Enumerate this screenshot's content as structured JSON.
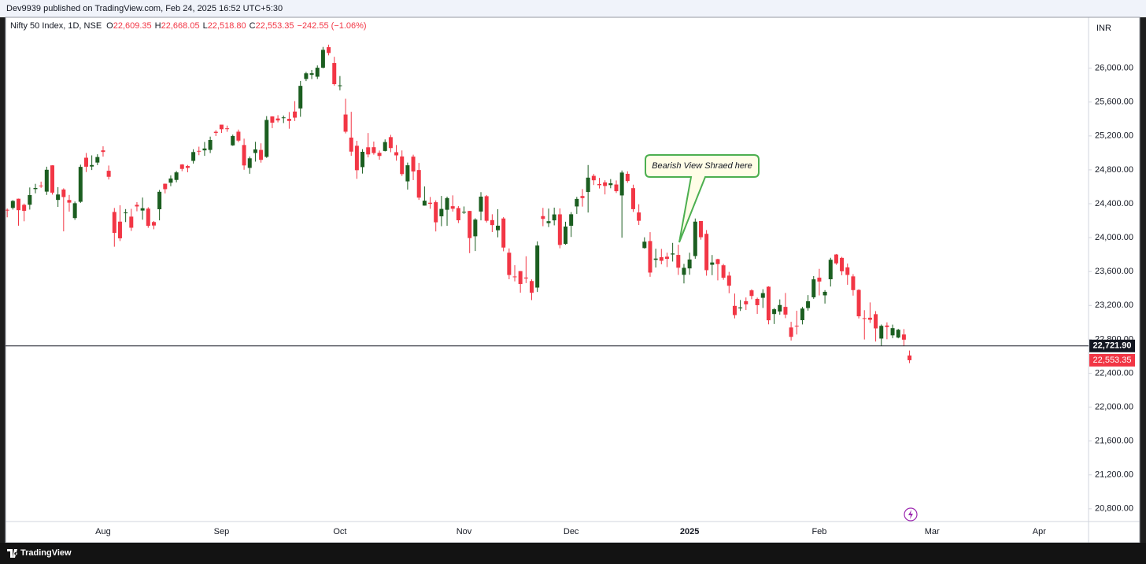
{
  "header": "Dev9939 published on TradingView.com, Feb 24, 2025 16:52 UTC+5:30",
  "footer": "TradingView",
  "chart_data": {
    "type": "candlestick",
    "legend": {
      "symbol": "Nifty 50 Index, 1D, NSE",
      "items": [
        {
          "key": "O",
          "value": "22,609.35"
        },
        {
          "key": "H",
          "value": "22,668.05"
        },
        {
          "key": "L",
          "value": "22,518.80"
        },
        {
          "key": "C",
          "value": "22,553.35"
        }
      ],
      "change": "−242.55 (−1.06%)"
    },
    "currency": "INR",
    "annotation": "Bearish View Shraed here",
    "up_color": "#1b5e20",
    "down_color": "#f23645",
    "ylim": [
      20650,
      26600
    ],
    "yticks": [
      {
        "value": 26000,
        "label": "26,000.00"
      },
      {
        "value": 25600,
        "label": "25,600.00"
      },
      {
        "value": 25200,
        "label": "25,200.00"
      },
      {
        "value": 24800,
        "label": "24,800.00"
      },
      {
        "value": 24400,
        "label": "24,400.00"
      },
      {
        "value": 24000,
        "label": "24,000.00"
      },
      {
        "value": 23600,
        "label": "23,600.00"
      },
      {
        "value": 23200,
        "label": "23,200.00"
      },
      {
        "value": 22800,
        "label": "22,800.00"
      },
      {
        "value": 22400,
        "label": "22,400.00"
      },
      {
        "value": 22000,
        "label": "22,000.00"
      },
      {
        "value": 21600,
        "label": "21,600.00"
      },
      {
        "value": 21200,
        "label": "21,200.00"
      },
      {
        "value": 20800,
        "label": "20,800.00"
      }
    ],
    "hline": {
      "value": 22721.9,
      "label": "22,721.90"
    },
    "last_price": {
      "value": 22553.35,
      "label": "22,553.35"
    },
    "categories": [
      null,
      null,
      null,
      null,
      null,
      null,
      null,
      null,
      null,
      null,
      null,
      null,
      null,
      null,
      null,
      null,
      null,
      null,
      "Aug",
      null,
      null,
      null,
      null,
      null,
      null,
      null,
      null,
      null,
      null,
      null,
      null,
      null,
      null,
      null,
      null,
      null,
      null,
      null,
      null,
      "Sep",
      null,
      null,
      null,
      null,
      null,
      null,
      null,
      null,
      null,
      null,
      null,
      null,
      null,
      null,
      null,
      null,
      null,
      null,
      null,
      null,
      "Oct",
      null,
      null,
      null,
      null,
      null,
      null,
      null,
      null,
      null,
      null,
      null,
      null,
      null,
      null,
      null,
      null,
      null,
      null,
      null,
      null,
      null,
      "Nov",
      null,
      null,
      null,
      null,
      null,
      null,
      null,
      null,
      null,
      null,
      null,
      null,
      null,
      null,
      null,
      null,
      null,
      null,
      "Dec",
      null,
      null,
      null,
      null,
      null,
      null,
      null,
      null,
      null,
      null,
      null,
      null,
      null,
      null,
      null,
      null,
      null,
      null,
      null,
      null,
      "2025",
      null,
      null,
      null,
      null,
      null,
      null,
      null,
      null,
      null,
      null,
      null,
      null,
      null,
      null,
      null,
      null,
      null,
      null,
      null,
      null,
      null,
      null,
      "Feb",
      null,
      null,
      null,
      null,
      null,
      null,
      null,
      null,
      null,
      null,
      null,
      null,
      null,
      null,
      null,
      null,
      null,
      null,
      null,
      "Mar",
      null,
      null,
      null,
      null,
      null,
      null,
      null,
      null,
      null,
      null,
      null,
      null,
      null,
      null,
      null,
      null,
      null,
      null,
      "Apr",
      null,
      null,
      null,
      null,
      null,
      null,
      null,
      null
    ],
    "ohlc": [
      [
        24302,
        24363,
        24168,
        24323
      ],
      [
        24329,
        24344,
        24240,
        24320
      ],
      [
        24351,
        24443,
        24331,
        24433
      ],
      [
        24459,
        24461,
        24141,
        24324
      ],
      [
        24387,
        24402,
        24193,
        24316
      ],
      [
        24388,
        24592,
        24331,
        24502
      ],
      [
        24573,
        24635,
        24523,
        24586
      ],
      [
        24615,
        24661,
        24587,
        24613
      ],
      [
        24543,
        24837,
        24504,
        24801
      ],
      [
        24853,
        24854,
        24508,
        24531
      ],
      [
        24445,
        24595,
        24363,
        24509
      ],
      [
        24568,
        24582,
        24074,
        24479
      ],
      [
        24444,
        24504,
        24307,
        24413
      ],
      [
        24231,
        24426,
        24210,
        24406
      ],
      [
        24423,
        24861,
        24410,
        24835
      ],
      [
        24943,
        24999,
        24774,
        24837
      ],
      [
        24839,
        24971,
        24798,
        24857
      ],
      [
        24886,
        24984,
        24856,
        24951
      ],
      [
        25030,
        25078,
        24956,
        25011
      ],
      [
        24789,
        24851,
        24686,
        24718
      ],
      [
        24303,
        24350,
        23893,
        24056
      ],
      [
        24189,
        24382,
        23960,
        23992
      ],
      [
        24289,
        24337,
        24184,
        24297
      ],
      [
        24248,
        24340,
        24079,
        24117
      ],
      [
        24387,
        24419,
        24311,
        24368
      ],
      [
        24320,
        24473,
        24212,
        24347
      ],
      [
        24342,
        24359,
        24116,
        24139
      ],
      [
        24184,
        24196,
        24099,
        24143
      ],
      [
        24335,
        24563,
        24204,
        24541
      ],
      [
        24636,
        24638,
        24522,
        24572
      ],
      [
        24648,
        24734,
        24607,
        24698
      ],
      [
        24681,
        24787,
        24653,
        24770
      ],
      [
        24863,
        24867,
        24784,
        24811
      ],
      [
        24845,
        24858,
        24771,
        24823
      ],
      [
        24906,
        25043,
        24874,
        25010
      ],
      [
        25024,
        25073,
        24973,
        25017
      ],
      [
        25030,
        25129,
        24965,
        25052
      ],
      [
        25035,
        25192,
        24998,
        25152
      ],
      [
        25249,
        25268,
        25199,
        25236
      ],
      [
        25333,
        25333,
        25235,
        25279
      ],
      [
        25290,
        25322,
        25249,
        25280
      ],
      [
        25089,
        25216,
        25083,
        25199
      ],
      [
        25250,
        25275,
        25127,
        25145
      ],
      [
        25093,
        25168,
        24801,
        24852
      ],
      [
        24823,
        24957,
        24754,
        24936
      ],
      [
        24999,
        25131,
        24897,
        25041
      ],
      [
        25035,
        25113,
        24885,
        24918
      ],
      [
        24953,
        25434,
        24941,
        25389
      ],
      [
        25430,
        25433,
        25292,
        25357
      ],
      [
        25406,
        25445,
        25360,
        25383
      ],
      [
        25416,
        25441,
        25352,
        25419
      ],
      [
        25402,
        25482,
        25285,
        25377
      ],
      [
        25488,
        25611,
        25376,
        25416
      ],
      [
        25525,
        25849,
        25426,
        25791
      ],
      [
        25872,
        25956,
        25847,
        25939
      ],
      [
        25921,
        25978,
        25871,
        25940
      ],
      [
        25899,
        26032,
        25872,
        26005
      ],
      [
        26005,
        26250,
        25998,
        26216
      ],
      [
        26248,
        26277,
        26151,
        26179
      ],
      [
        26061,
        26134,
        25794,
        25811
      ],
      [
        25788,
        25907,
        25739,
        25797
      ],
      [
        25453,
        25639,
        25230,
        25250
      ],
      [
        25181,
        25485,
        24966,
        25015
      ],
      [
        25084,
        25143,
        24694,
        24796
      ],
      [
        24832,
        25044,
        24756,
        25013
      ],
      [
        25066,
        25234,
        24947,
        24982
      ],
      [
        25067,
        25134,
        24979,
        24998
      ],
      [
        25001,
        25028,
        24920,
        24964
      ],
      [
        25023,
        25159,
        25017,
        25128
      ],
      [
        25186,
        25213,
        25008,
        25057
      ],
      [
        25008,
        25093,
        24908,
        24971
      ],
      [
        24958,
        25029,
        24728,
        24750
      ],
      [
        24664,
        24886,
        24567,
        24854
      ],
      [
        24956,
        24979,
        24679,
        24781
      ],
      [
        24798,
        24882,
        24445,
        24472
      ],
      [
        24378,
        24604,
        24378,
        24436
      ],
      [
        24412,
        24480,
        24341,
        24399
      ],
      [
        24418,
        24440,
        24073,
        24181
      ],
      [
        24252,
        24492,
        24135,
        24339
      ],
      [
        24329,
        24484,
        24140,
        24467
      ],
      [
        24371,
        24499,
        24307,
        24341
      ],
      [
        24349,
        24372,
        24172,
        24205
      ],
      [
        24302,
        24368,
        24280,
        24304
      ],
      [
        24315,
        24316,
        23817,
        23995
      ],
      [
        24016,
        24229,
        23842,
        24213
      ],
      [
        24308,
        24537,
        24204,
        24484
      ],
      [
        24489,
        24503,
        24179,
        24199
      ],
      [
        24207,
        24276,
        24066,
        24148
      ],
      [
        24087,
        24336,
        24004,
        24141
      ],
      [
        24226,
        24242,
        23839,
        23883
      ],
      [
        23822,
        23873,
        23509,
        23559
      ],
      [
        23542,
        23675,
        23484,
        23533
      ],
      [
        23605,
        23606,
        23350,
        23453
      ],
      [
        23529,
        23780,
        23464,
        23518
      ],
      [
        23488,
        23507,
        23263,
        23349
      ],
      [
        23411,
        23956,
        23359,
        23907
      ],
      [
        24254,
        24351,
        24135,
        24221
      ],
      [
        24171,
        24343,
        24125,
        24194
      ],
      [
        24204,
        24354,
        24145,
        24274
      ],
      [
        24275,
        24345,
        23874,
        23914
      ],
      [
        23927,
        24188,
        23916,
        24131
      ],
      [
        24140,
        24301,
        24008,
        24276
      ],
      [
        24368,
        24481,
        24280,
        24457
      ],
      [
        24491,
        24573,
        24366,
        24467
      ],
      [
        24539,
        24857,
        24296,
        24708
      ],
      [
        24729,
        24751,
        24621,
        24677
      ],
      [
        24633,
        24705,
        24580,
        24619
      ],
      [
        24652,
        24677,
        24510,
        24610
      ],
      [
        24620,
        24691,
        24583,
        24641
      ],
      [
        24627,
        24675,
        24527,
        24548
      ],
      [
        24498,
        24792,
        23999,
        24768
      ],
      [
        24753,
        24782,
        24647,
        24668
      ],
      [
        24584,
        24625,
        24303,
        24336
      ],
      [
        24297,
        24394,
        24149,
        24199
      ],
      [
        23877,
        24004,
        23870,
        23952
      ],
      [
        23960,
        24065,
        23538,
        23588
      ],
      [
        23738,
        23869,
        23647,
        23753
      ],
      [
        23769,
        23867,
        23685,
        23727
      ],
      [
        23775,
        23822,
        23653,
        23750
      ],
      [
        23801,
        23938,
        23718,
        23813
      ],
      [
        23796,
        23916,
        23560,
        23645
      ],
      [
        23561,
        23690,
        23460,
        23644
      ],
      [
        23637,
        23822,
        23562,
        23742
      ],
      [
        23783,
        24226,
        23751,
        24189
      ],
      [
        24196,
        24196,
        23976,
        24005
      ],
      [
        24045,
        24089,
        23551,
        23616
      ],
      [
        23680,
        23795,
        23557,
        23707
      ],
      [
        23746,
        23751,
        23496,
        23688
      ],
      [
        23674,
        23690,
        23503,
        23527
      ],
      [
        23552,
        23596,
        23344,
        23432
      ],
      [
        23195,
        23340,
        23047,
        23086
      ],
      [
        23165,
        23264,
        23135,
        23176
      ],
      [
        23250,
        23294,
        23146,
        23213
      ],
      [
        23378,
        23391,
        23273,
        23312
      ],
      [
        23277,
        23292,
        23100,
        23203
      ],
      [
        23290,
        23391,
        23170,
        23345
      ],
      [
        23421,
        23426,
        22977,
        23025
      ],
      [
        23099,
        23169,
        22981,
        23155
      ],
      [
        23128,
        23271,
        23090,
        23205
      ],
      [
        23183,
        23347,
        23050,
        23092
      ],
      [
        22940,
        23007,
        22786,
        22829
      ],
      [
        22960,
        23137,
        22857,
        22957
      ],
      [
        23026,
        23183,
        22976,
        23163
      ],
      [
        23169,
        23322,
        23139,
        23249
      ],
      [
        23296,
        23546,
        23278,
        23508
      ],
      [
        23528,
        23632,
        23318,
        23482
      ],
      [
        23319,
        23381,
        23222,
        23361
      ],
      [
        23509,
        23762,
        23423,
        23739
      ],
      [
        23801,
        23807,
        23680,
        23696
      ],
      [
        23761,
        23773,
        23556,
        23603
      ],
      [
        23649,
        23694,
        23443,
        23560
      ],
      [
        23543,
        23569,
        23316,
        23381
      ],
      [
        23383,
        23391,
        23046,
        23072
      ],
      [
        23050,
        23144,
        22798,
        23045
      ],
      [
        23055,
        23236,
        22993,
        23031
      ],
      [
        23097,
        23133,
        22774,
        22929
      ],
      [
        22809,
        22975,
        22725,
        22959
      ],
      [
        22963,
        23000,
        22801,
        22945
      ],
      [
        22847,
        22974,
        22814,
        22932
      ],
      [
        22821,
        22923,
        22812,
        22913
      ],
      [
        22857,
        22921,
        22720,
        22796
      ],
      [
        22609.35,
        22668.05,
        22518.8,
        22553.35
      ],
      null,
      null,
      null,
      null,
      null,
      null,
      null,
      null,
      null,
      null,
      null,
      null,
      null,
      null,
      null,
      null,
      null,
      null,
      null,
      null,
      null,
      null,
      null,
      null,
      null,
      null,
      null,
      null,
      null,
      null,
      null
    ]
  }
}
